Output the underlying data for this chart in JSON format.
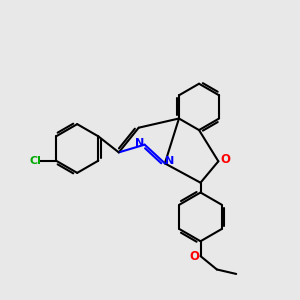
{
  "background_color": "#e8e8e8",
  "bond_color": "#000000",
  "nitrogen_color": "#0000ff",
  "oxygen_color": "#ff0000",
  "chlorine_color": "#00aa00",
  "line_width": 1.5,
  "figsize": [
    3.0,
    3.0
  ],
  "dpi": 100,
  "xlim": [
    0,
    10
  ],
  "ylim": [
    0,
    10
  ]
}
